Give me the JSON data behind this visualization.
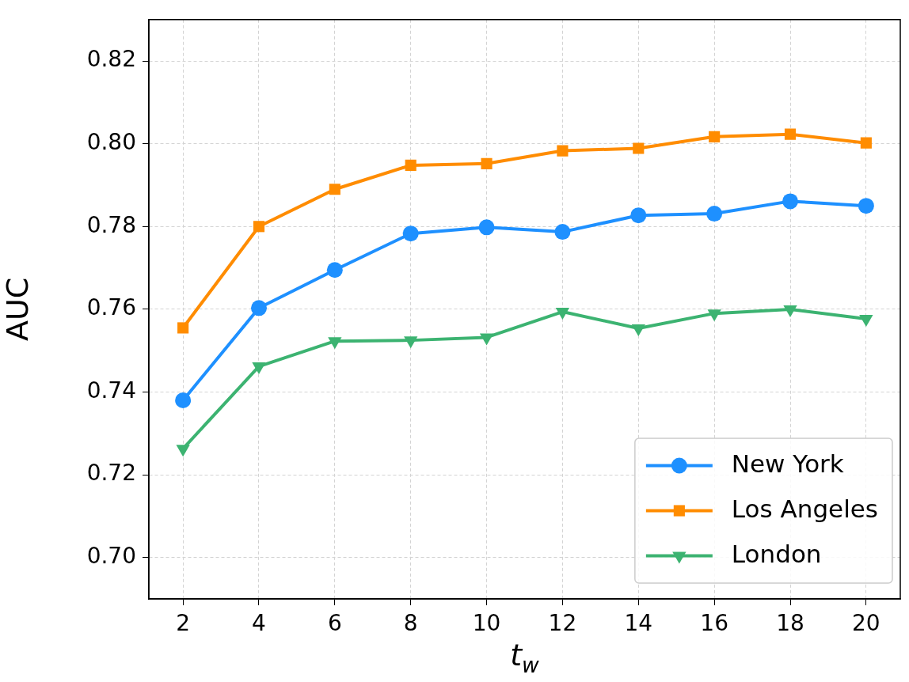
{
  "chart_data": {
    "type": "line",
    "xlabel": "t$_{w}$",
    "ylabel": "AUC",
    "xlim": [
      1.1,
      20.9
    ],
    "xticks": [
      2,
      4,
      6,
      8,
      10,
      12,
      14,
      16,
      18,
      20
    ],
    "ylim": [
      0.69,
      0.83
    ],
    "yticks": [
      {
        "value": 0.7,
        "label": "0.70"
      },
      0.72,
      0.74,
      0.76,
      0.78,
      {
        "value": 0.8,
        "label": "0.80"
      },
      0.82
    ],
    "x": [
      2,
      4,
      6,
      8,
      10,
      12,
      14,
      16,
      18,
      20
    ],
    "grid": true,
    "legend": "bottom right",
    "line_style": "solid",
    "series": [
      {
        "name": "New York",
        "color": "#1e90ff",
        "marker": "circle",
        "values": [
          0.738,
          0.7603,
          0.7695,
          0.7783,
          0.7798,
          0.7787,
          0.7827,
          0.7831,
          0.7861,
          0.785
        ]
      },
      {
        "name": "Los Angeles",
        "color": "#ff8c00",
        "marker": "square",
        "values": [
          0.7555,
          0.78,
          0.789,
          0.7948,
          0.7952,
          0.7983,
          0.7989,
          0.8017,
          0.8023,
          0.8002
        ]
      },
      {
        "name": "London",
        "color": "#3cb371",
        "marker": "triangle-down",
        "values": [
          0.7263,
          0.7462,
          0.7523,
          0.7525,
          0.7532,
          0.7594,
          0.7554,
          0.759,
          0.76,
          0.7577
        ]
      }
    ]
  }
}
